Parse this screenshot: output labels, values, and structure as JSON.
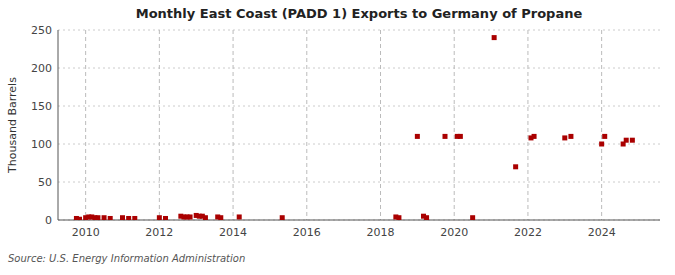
{
  "chart_data": {
    "type": "scatter",
    "title": "Monthly East Coast (PADD 1) Exports to Germany of Propane",
    "y_label": "Thousand Barrels",
    "annotations": [
      "Source: U.S. Energy Information Administration"
    ],
    "x": [
      2009.75,
      2009.8333333333333,
      2010,
      2010.0833333333333,
      2010.1666666666667,
      2010.25,
      2010.3333333333333,
      2010.5,
      2010.6666666666667,
      2011,
      2011.1666666666667,
      2011.3333333333333,
      2012,
      2012.1666666666667,
      2012.5833333333333,
      2012.6666666666667,
      2012.75,
      2012.8333333333333,
      2013,
      2013.0833333333333,
      2013.1666666666667,
      2013.25,
      2013.5833333333333,
      2013.6666666666667,
      2014.1666666666667,
      2015.3333333333333,
      2018.4166666666667,
      2018.5,
      2019,
      2019.1666666666667,
      2019.25,
      2019.75,
      2020.0833333333333,
      2020.1666666666667,
      2020.5,
      2021.0833333333333,
      2021.6666666666667,
      2022.0833333333333,
      2022.1666666666667,
      2023,
      2023.1666666666667,
      2024,
      2024.0833333333333,
      2024.5833333333333,
      2024.6666666666667,
      2024.8333333333333
    ],
    "values": [
      2,
      1,
      3,
      4,
      4,
      3,
      3,
      3,
      2,
      3,
      2,
      2,
      3,
      2,
      5,
      4,
      4,
      4,
      6,
      5,
      5,
      3,
      4,
      3,
      4,
      3,
      4,
      3,
      110,
      5,
      3,
      110,
      110,
      110,
      3,
      240,
      70,
      108,
      110,
      108,
      110,
      100,
      110,
      100,
      105,
      105
    ],
    "color": "#aa0000",
    "marker": "square",
    "xlim": [
      2009.25,
      2025.5833333333333
    ],
    "xticks": [
      2010,
      2012,
      2014,
      2016,
      2018,
      2020,
      2022,
      2024
    ],
    "ylim": [
      0,
      250
    ],
    "yticks": [
      0,
      50,
      100,
      150,
      200,
      250
    ],
    "grid": true
  }
}
